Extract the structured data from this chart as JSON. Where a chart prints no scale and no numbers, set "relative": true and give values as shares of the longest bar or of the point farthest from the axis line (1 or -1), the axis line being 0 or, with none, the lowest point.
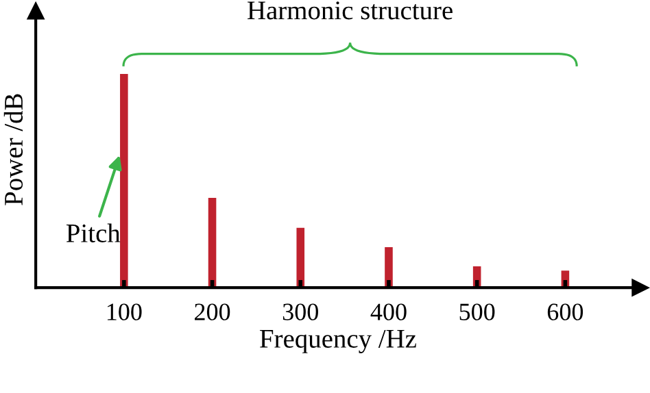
{
  "chart_data": {
    "type": "bar",
    "relative": true,
    "x": [
      100,
      200,
      300,
      400,
      500,
      600
    ],
    "values": [
      1,
      0.42,
      0.28,
      0.19,
      0.1,
      0.08
    ],
    "color": "#c0222e",
    "xlim": [
      0,
      685
    ],
    "xticks": [
      100,
      200,
      300,
      400,
      500,
      600
    ],
    "xlabel": "Frequency /Hz",
    "ylabel": "Power /dB",
    "grid": false,
    "annotations": [
      "Harmonic structure",
      {
        "text": "Pitch",
        "x": 100,
        "y": 0.62
      }
    ]
  }
}
